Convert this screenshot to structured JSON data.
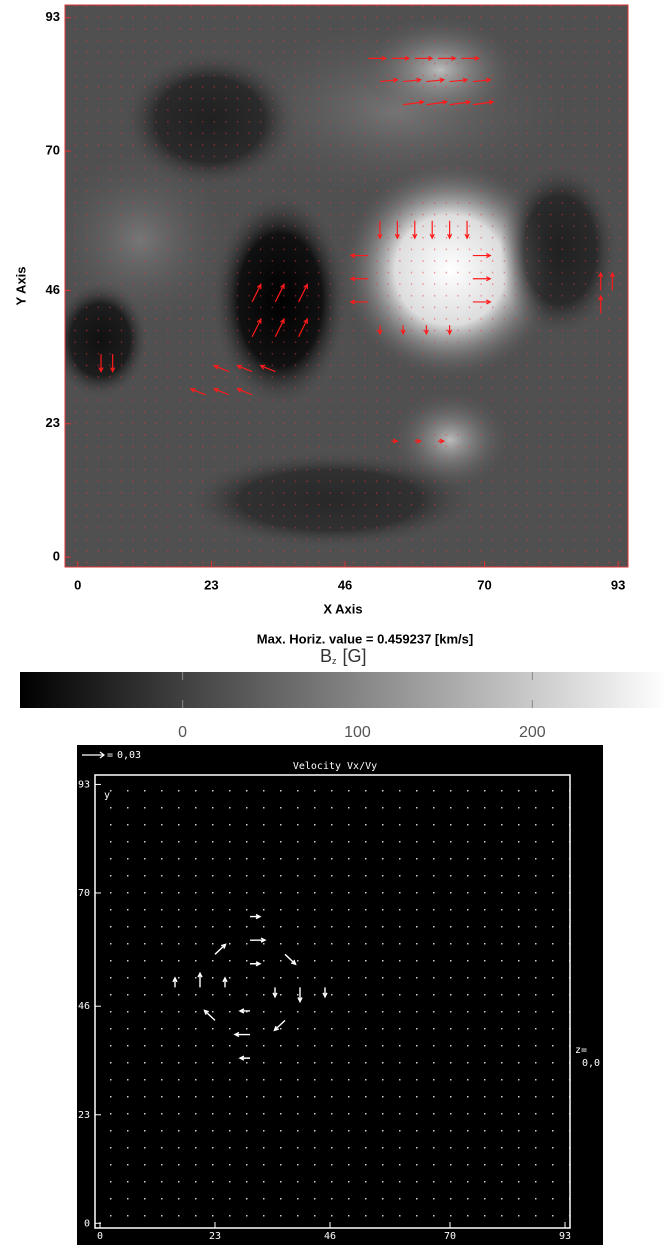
{
  "chart_data": [
    {
      "type": "quiver",
      "xlabel": "X Axis",
      "ylabel": "Y Axis",
      "annotation": "Max. Horiz. value = 0.459237 [km/s]",
      "xlim": [
        -2.2,
        94.7
      ],
      "ylim": [
        -1.7,
        95.2
      ],
      "xticks": [
        0,
        23,
        46,
        70,
        93
      ],
      "yticks": [
        0,
        23,
        46,
        70,
        93
      ],
      "series": [
        {
          "color": "#ff1a1a",
          "x": [
            50,
            54,
            58,
            62,
            66,
            52,
            56,
            60,
            64,
            68,
            56,
            60,
            64,
            68,
            52,
            55,
            58,
            61,
            64,
            67,
            50,
            50,
            50,
            68,
            68,
            68,
            52,
            56,
            60,
            64,
            30,
            34,
            38,
            30,
            34,
            38,
            26,
            30,
            34,
            22,
            26,
            30,
            4,
            6,
            90,
            92,
            90,
            54,
            58,
            62
          ],
          "y": [
            86,
            86,
            86,
            86,
            86,
            82,
            82,
            82,
            82,
            82,
            78,
            78,
            78,
            78,
            58,
            58,
            58,
            58,
            58,
            58,
            52,
            48,
            44,
            52,
            48,
            44,
            40,
            40,
            40,
            40,
            44,
            44,
            44,
            38,
            38,
            38,
            32,
            32,
            32,
            28,
            28,
            28,
            35,
            35,
            46,
            46,
            42,
            20,
            20,
            20
          ],
          "u": [
            3,
            3,
            3,
            3,
            3,
            3,
            3,
            3,
            3,
            3,
            3.5,
            3.5,
            3.5,
            3.5,
            0,
            0,
            0,
            0,
            0,
            0,
            -3,
            -3,
            -3,
            3,
            3,
            3,
            0,
            0,
            0,
            0,
            1.5,
            1.5,
            1.5,
            1.5,
            1.5,
            1.5,
            -2.5,
            -2.5,
            -2.5,
            -2.5,
            -2.5,
            -2.5,
            0,
            0,
            0,
            0,
            0,
            1,
            1,
            1
          ],
          "v": [
            0,
            0,
            0,
            0,
            0,
            0.3,
            0.3,
            0.3,
            0.3,
            0.3,
            0.5,
            0.5,
            0.5,
            0.5,
            -3,
            -3,
            -3,
            -3,
            -3,
            -3,
            0,
            0,
            0,
            0,
            0,
            0,
            -1.5,
            -1.5,
            -1.5,
            -1.5,
            3,
            3,
            3,
            3,
            3,
            3,
            1,
            1,
            1,
            1,
            1,
            1,
            -3,
            -3,
            3,
            3,
            3,
            0,
            0,
            0
          ]
        }
      ]
    },
    {
      "type": "colorbar",
      "label": "B",
      "label_subscript": "z",
      "label_unit": "[G]",
      "xlim": [
        -93,
        277
      ],
      "xticks": [
        0,
        100,
        200
      ],
      "colors": [
        "#000000",
        "#ffffff"
      ]
    },
    {
      "type": "quiver",
      "title": "Velocity Vx/Vy",
      "ylabel": "y",
      "key_prefix": "=",
      "key": {
        "value": 0.03,
        "label": "0,03"
      },
      "z_label": "z=",
      "z_value": {
        "value": 0,
        "label": "0,0"
      },
      "xlim": [
        -1,
        94
      ],
      "ylim": [
        -1,
        95
      ],
      "xticks": [
        0,
        23,
        46,
        70,
        93
      ],
      "yticks": [
        0,
        23,
        46,
        70,
        93
      ],
      "series": [
        {
          "color": "#ffffff",
          "x": [
            40,
            37,
            30,
            23,
            20,
            23,
            30,
            37,
            35,
            30,
            25,
            30,
            45,
            30,
            15,
            30
          ],
          "y": [
            50,
            57,
            60,
            57,
            50,
            43,
            40,
            43,
            50,
            55,
            50,
            45,
            50,
            65,
            50,
            35
          ],
          "u": [
            0,
            2.1,
            3,
            2.1,
            0,
            -2.1,
            -3,
            -2.1,
            0,
            2,
            0,
            -2,
            0,
            2,
            0,
            -2
          ],
          "v": [
            -3,
            -2.1,
            0,
            2.1,
            3,
            2.1,
            0,
            -2.1,
            -2,
            0,
            2,
            0,
            -2,
            0,
            2,
            0
          ]
        }
      ]
    }
  ]
}
